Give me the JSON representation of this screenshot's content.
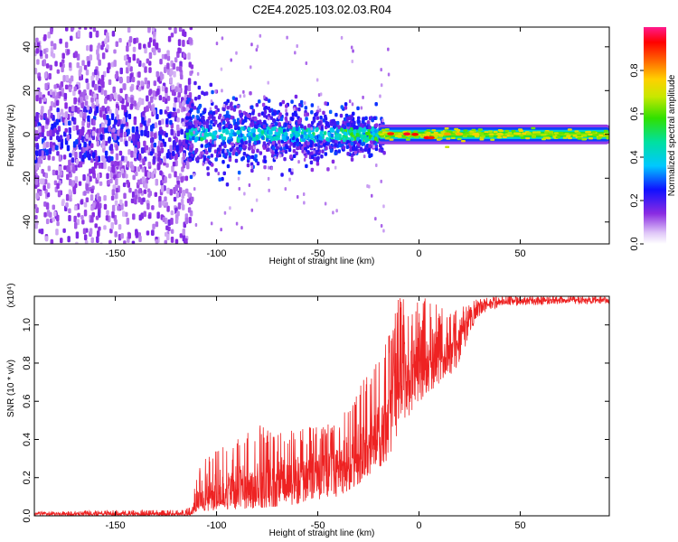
{
  "title": "C2E4.2025.103.02.03.R04",
  "colors": {
    "snr_line": "#ee2222",
    "axes": "#000000",
    "background": "#ffffff"
  },
  "chart_data": [
    {
      "type": "heatmap",
      "name": "spectrogram",
      "xlabel": "Height of straight line (km)",
      "ylabel": "Frequency (Hz)",
      "xlim": [
        -190,
        94
      ],
      "ylim": [
        -50,
        49
      ],
      "xticks": [
        -150,
        -100,
        -50,
        0,
        50
      ],
      "yticks": [
        -40,
        -20,
        0,
        20,
        40
      ],
      "colorbar": {
        "label": "Normalized spectral amplitude",
        "range": [
          0.0,
          1.0
        ],
        "ticks": [
          "0.0",
          "0.2",
          "0.4",
          "0.6",
          "0.8"
        ],
        "tick_values": [
          0.0,
          0.2,
          0.4,
          0.6,
          0.8
        ],
        "colormap": "rainbow (white-violet-blue-cyan-green-yellow-red-magenta)"
      },
      "regions": [
        {
          "x_range": [
            -190,
            -115
          ],
          "freq_spread": [
            -50,
            49
          ],
          "amplitude": "low (0.1–0.3), dense purple speckle"
        },
        {
          "x_range": [
            -115,
            -20
          ],
          "freq_spread": [
            -15,
            15
          ],
          "amplitude": "0.2–0.5, blue/cyan blobs"
        },
        {
          "x_range": [
            -20,
            94
          ],
          "freq_spread": [
            -4,
            4
          ],
          "amplitude": "0.5–1.0, narrow green/yellow band centered at 0 Hz with red peaks near -15, -5 and 5 km"
        }
      ]
    },
    {
      "type": "line",
      "name": "snr",
      "xlabel": "Height of straight line (km)",
      "ylabel": "SNR (10 * v/v)",
      "multiplier": "(x10⁴)",
      "xlim": [
        -190,
        94
      ],
      "ylim": [
        0,
        1.15
      ],
      "xticks": [
        -150,
        -100,
        -50,
        0,
        50
      ],
      "yticks": [
        "0.0",
        "0.2",
        "0.4",
        "0.6",
        "0.8",
        "1.0"
      ],
      "ytick_values": [
        0.0,
        0.2,
        0.4,
        0.6,
        0.8,
        1.0
      ],
      "series": [
        {
          "name": "SNR",
          "color": "#ee2222",
          "x": [
            -190,
            -150,
            -120,
            -112,
            -110,
            -100,
            -80,
            -60,
            -40,
            -25,
            -15,
            -10,
            0,
            10,
            20,
            25,
            30,
            40,
            50,
            70,
            94
          ],
          "y": [
            0.01,
            0.01,
            0.01,
            0.02,
            0.1,
            0.12,
            0.16,
            0.2,
            0.25,
            0.35,
            0.55,
            0.75,
            0.8,
            0.85,
            0.95,
            1.05,
            1.1,
            1.12,
            1.13,
            1.13,
            1.13
          ],
          "y_peak_min": [
            0,
            0,
            0,
            0,
            0.02,
            0.03,
            0.04,
            0.06,
            0.1,
            0.2,
            0.3,
            0.45,
            0.6,
            0.65,
            0.8,
            0.95,
            1.05,
            1.1,
            1.1,
            1.11,
            1.11
          ],
          "y_peak_max": [
            0.02,
            0.03,
            0.03,
            0.05,
            0.22,
            0.4,
            0.48,
            0.45,
            0.5,
            0.78,
            0.95,
            1.16,
            1.16,
            1.1,
            1.1,
            1.12,
            1.14,
            1.15,
            1.15,
            1.15,
            1.15
          ]
        }
      ]
    }
  ]
}
